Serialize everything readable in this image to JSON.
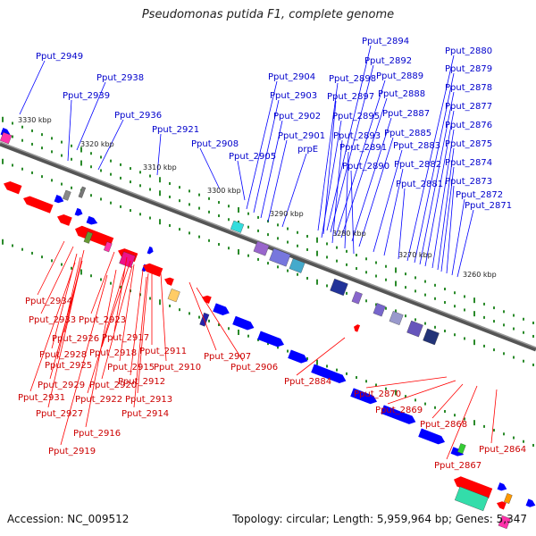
{
  "title": "Pseudomonas putida F1, complete genome",
  "footer": {
    "accession": "Accession: NC_009512",
    "summary": "Topology: circular; Length: 5,959,964 bp; Genes: 5,347"
  },
  "colors": {
    "backbone": "#808080",
    "forward_gene": "#0000ff",
    "reverse_gene": "#ff0000",
    "top_label": "#0000cc",
    "bottom_label": "#cc0000",
    "tick": "#2a8a2a"
  },
  "coordinates": [
    "3330 kbp",
    "3320 kbp",
    "3310 kbp",
    "3300 kbp",
    "3290 kbp",
    "3280 kbp",
    "3270 kbp",
    "3260 kbp"
  ],
  "top_labels": [
    "Pput_2949",
    "Pput_2938",
    "Pput_2939",
    "Pput_2936",
    "Pput_2921",
    "Pput_2908",
    "Pput_2905",
    "Pput_2904",
    "Pput_2903",
    "Pput_2902",
    "Pput_2901",
    "prpE",
    "Pput_2894",
    "Pput_2892",
    "Pput_2898",
    "Pput_2897",
    "Pput_2889",
    "Pput_2888",
    "Pput_2895",
    "Pput_2887",
    "Pput_2893",
    "Pput_2885",
    "Pput_2891",
    "Pput_2883",
    "Pput_2890",
    "Pput_2882",
    "Pput_2881",
    "Pput_2880",
    "Pput_2879",
    "Pput_2878",
    "Pput_2877",
    "Pput_2876",
    "Pput_2875",
    "Pput_2874",
    "Pput_2873",
    "Pput_2872",
    "Pput_2871"
  ],
  "bottom_labels": [
    "Pput_2934",
    "Pput_2933",
    "Pput_2923",
    "Pput_2926",
    "Pput_2917",
    "Pput_2928",
    "Pput_2918",
    "Pput_2911",
    "Pput_2925",
    "Pput_2910",
    "Pput_2915",
    "Pput_2907",
    "Pput_2929",
    "Pput_2920",
    "Pput_2912",
    "Pput_2931",
    "Pput_2922",
    "Pput_2913",
    "Pput_2927",
    "Pput_2914",
    "Pput_2916",
    "Pput_2919",
    "Pput_2906",
    "Pput_2884",
    "Pput_2870",
    "Pput_2869",
    "Pput_2868",
    "Pput_2867",
    "Pput_2864"
  ]
}
